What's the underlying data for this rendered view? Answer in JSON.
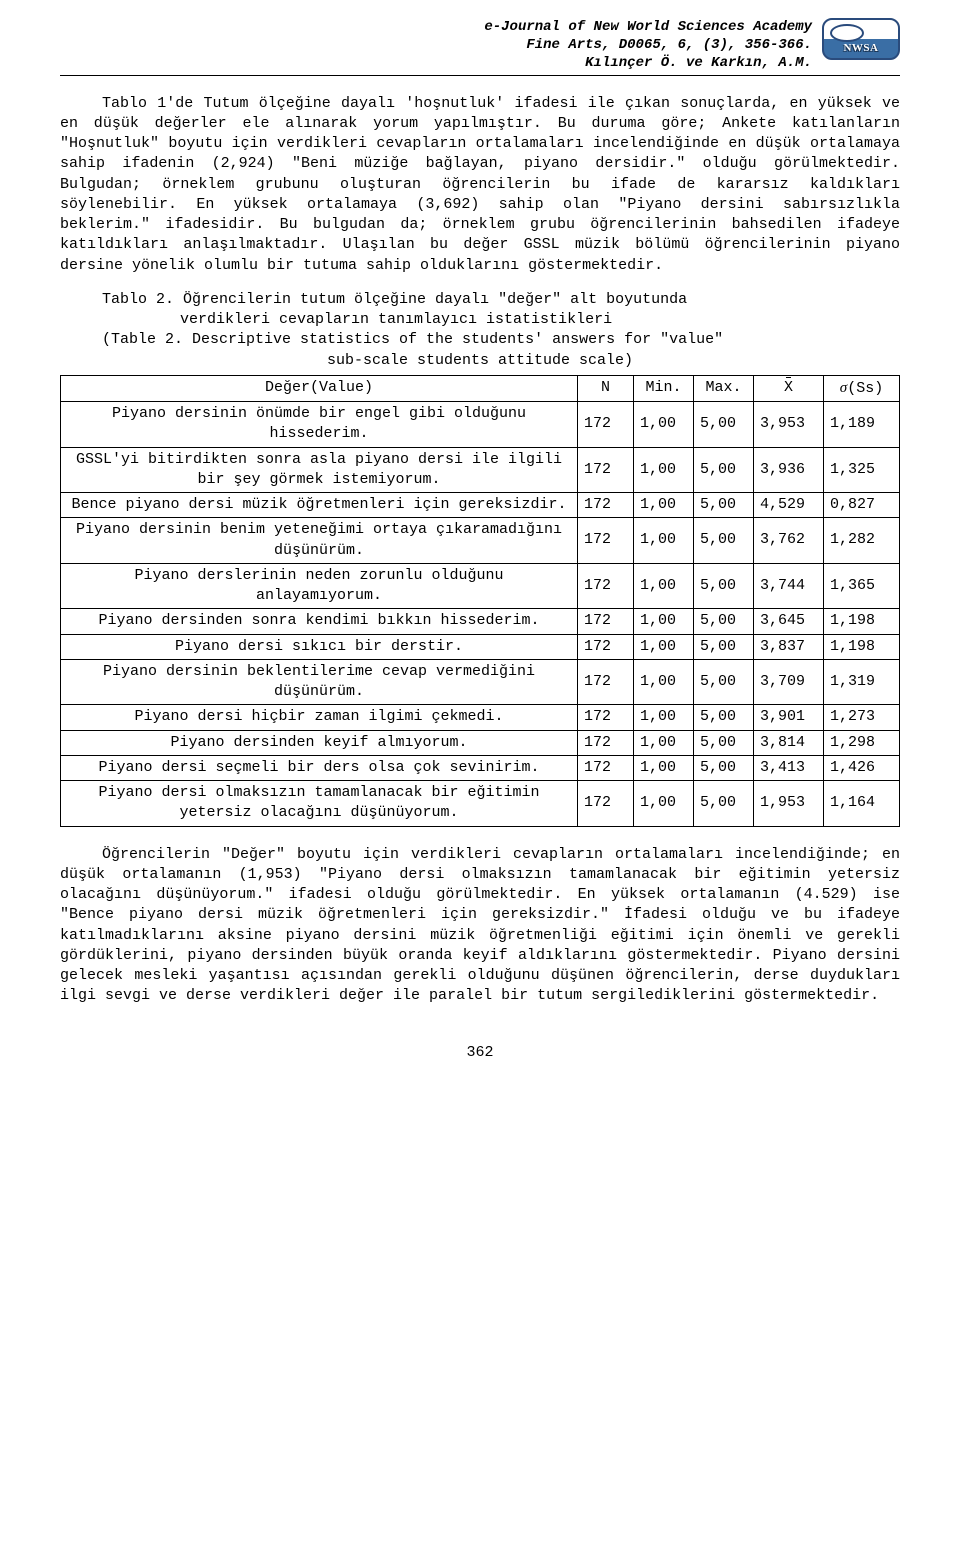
{
  "header": {
    "line1": "e-Journal of New World Sciences Academy",
    "line2": "Fine Arts, D0065, 6, (3), 356-366.",
    "line3": "Kılınçer Ö. ve Karkın, A.M.",
    "logo_text": "NWSA",
    "logo_border": "#2a4b7c",
    "logo_bg_bottom": "#3a6ea5"
  },
  "para1": "Tablo 1'de Tutum ölçeğine dayalı 'hoşnutluk' ifadesi ile çıkan sonuçlarda, en yüksek ve en düşük değerler ele alınarak yorum yapılmıştır. Bu duruma göre; Ankete katılanların \"Hoşnutluk\" boyutu için verdikleri cevapların ortalamaları incelendiğinde en düşük ortalamaya sahip ifadenin (2,924) \"Beni müziğe bağlayan, piyano dersidir.\" olduğu görülmektedir. Bulgudan; örneklem grubunu oluşturan öğrencilerin bu ifade de kararsız kaldıkları söylenebilir. En yüksek ortalamaya (3,692) sahip olan \"Piyano dersini sabırsızlıkla beklerim.\" ifadesidir. Bu bulgudan da; örneklem grubu öğrencilerinin bahsedilen ifadeye katıldıkları anlaşılmaktadır. Ulaşılan bu değer GSSL müzik bölümü öğrencilerinin piyano dersine yönelik olumlu bir tutuma sahip olduklarını göstermektedir.",
  "caption": {
    "l1": "Tablo 2. Öğrencilerin tutum ölçeğine dayalı \"değer\" alt boyutunda",
    "l2": "verdikleri cevapların tanımlayıcı istatistikleri",
    "l3": "(Table 2. Descriptive statistics of the students' answers for \"value\"",
    "l4": "sub-scale students attitude scale)"
  },
  "table": {
    "head": {
      "c1": "Değer(Value)",
      "c2": "N",
      "c3": "Min.",
      "c4": "Max.",
      "c5": "X",
      "c6_sigma": "σ",
      "c6_ss": "(Ss)"
    },
    "rows": [
      {
        "label": "Piyano dersinin önümde bir engel gibi olduğunu hissederim.",
        "n": "172",
        "min": "1,00",
        "max": "5,00",
        "x": "3,953",
        "ss": "1,189"
      },
      {
        "label": "GSSL'yi bitirdikten sonra asla piyano dersi ile ilgili bir şey görmek istemiyorum.",
        "n": "172",
        "min": "1,00",
        "max": "5,00",
        "x": "3,936",
        "ss": "1,325"
      },
      {
        "label": "Bence piyano dersi müzik öğretmenleri için gereksizdir.",
        "n": "172",
        "min": "1,00",
        "max": "5,00",
        "x": "4,529",
        "ss": "0,827"
      },
      {
        "label": "Piyano dersinin benim yeteneğimi ortaya çıkaramadığını düşünürüm.",
        "n": "172",
        "min": "1,00",
        "max": "5,00",
        "x": "3,762",
        "ss": "1,282"
      },
      {
        "label": "Piyano derslerinin neden zorunlu olduğunu anlayamıyorum.",
        "n": "172",
        "min": "1,00",
        "max": "5,00",
        "x": "3,744",
        "ss": "1,365"
      },
      {
        "label": "Piyano dersinden sonra kendimi bıkkın hissederim.",
        "n": "172",
        "min": "1,00",
        "max": "5,00",
        "x": "3,645",
        "ss": "1,198"
      },
      {
        "label": "Piyano dersi sıkıcı bir derstir.",
        "n": "172",
        "min": "1,00",
        "max": "5,00",
        "x": "3,837",
        "ss": "1,198"
      },
      {
        "label": "Piyano dersinin beklentilerime cevap vermediğini düşünürüm.",
        "n": "172",
        "min": "1,00",
        "max": "5,00",
        "x": "3,709",
        "ss": "1,319"
      },
      {
        "label": "Piyano dersi hiçbir zaman ilgimi çekmedi.",
        "n": "172",
        "min": "1,00",
        "max": "5,00",
        "x": "3,901",
        "ss": "1,273"
      },
      {
        "label": "Piyano dersinden keyif almıyorum.",
        "n": "172",
        "min": "1,00",
        "max": "5,00",
        "x": "3,814",
        "ss": "1,298"
      },
      {
        "label": "Piyano dersi seçmeli bir ders olsa çok sevinirim.",
        "n": "172",
        "min": "1,00",
        "max": "5,00",
        "x": "3,413",
        "ss": "1,426"
      },
      {
        "label": "Piyano dersi olmaksızın tamamlanacak bir eğitimin yetersiz olacağını düşünüyorum.",
        "n": "172",
        "min": "1,00",
        "max": "5,00",
        "x": "1,953",
        "ss": "1,164"
      }
    ]
  },
  "para2": "Öğrencilerin \"Değer\" boyutu için verdikleri cevapların ortalamaları incelendiğinde; en düşük ortalamanın (1,953) \"Piyano dersi olmaksızın tamamlanacak bir eğitimin yetersiz olacağını düşünüyorum.\" ifadesi olduğu görülmektedir. En yüksek ortalamanın (4.529) ise \"Bence piyano dersi müzik öğretmenleri için gereksizdir.\" İfadesi olduğu ve bu ifadeye katılmadıklarını aksine piyano dersini müzik öğretmenliği eğitimi için önemli ve gerekli gördüklerini, piyano dersinden büyük oranda keyif aldıklarını göstermektedir. Piyano dersini gelecek mesleki yaşantısı açısından gerekli olduğunu düşünen öğrencilerin, derse duydukları ilgi sevgi ve derse verdikleri değer ile paralel bir tutum sergilediklerini göstermektedir.",
  "page_number": "362"
}
